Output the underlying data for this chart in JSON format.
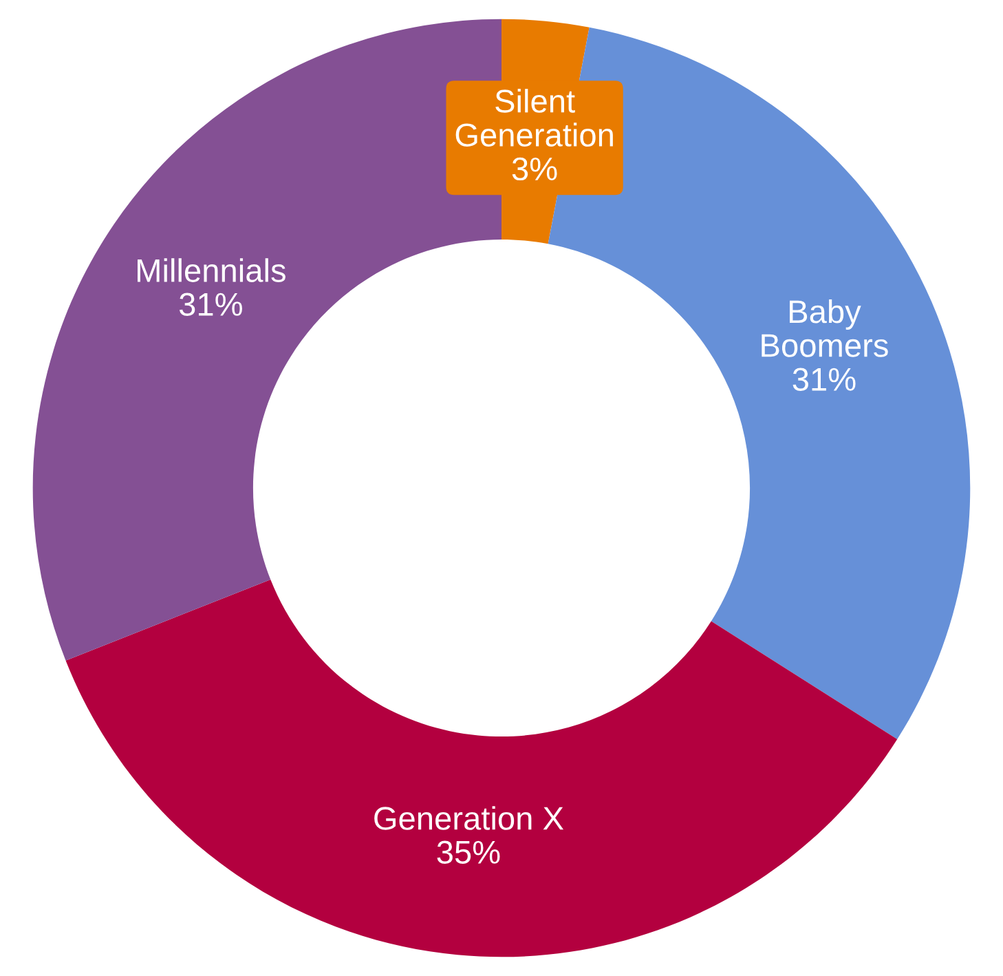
{
  "chart_data": {
    "type": "donut",
    "categories": [
      "Silent Generation",
      "Baby Boomers",
      "Generation X",
      "Millennials"
    ],
    "values": [
      3,
      31,
      35,
      31
    ],
    "colors": [
      "#e87b00",
      "#6690d8",
      "#b3003f",
      "#845094"
    ],
    "value_labels": [
      "3%",
      "31%",
      "35%",
      "31%"
    ],
    "legend": false
  }
}
